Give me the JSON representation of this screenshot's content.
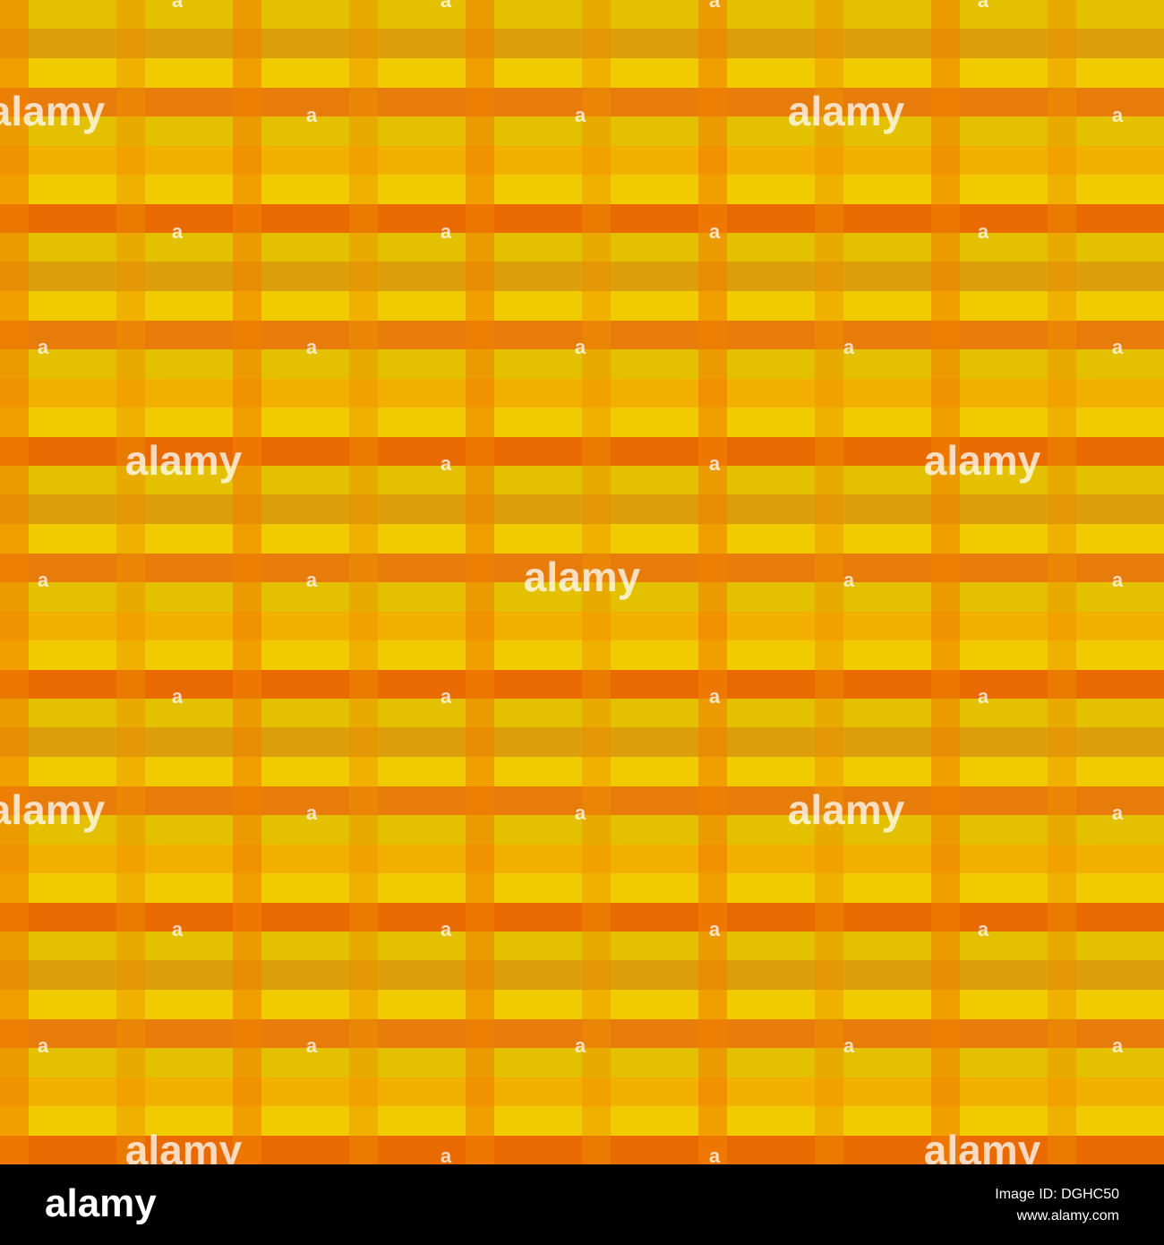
{
  "watermark": "alamy",
  "watermark_small": "a",
  "footer": {
    "logo": "alamy",
    "image_id": "Image ID: DGHC50",
    "url": "www.alamy.com"
  }
}
